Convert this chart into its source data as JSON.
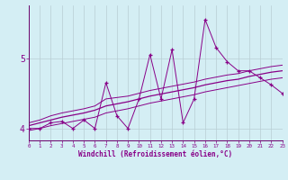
{
  "xlabel": "Windchill (Refroidissement éolien,°C)",
  "bg_color": "#d4eef4",
  "line_color": "#880088",
  "grid_color": "#b8cdd4",
  "spine_color": "#6a006a",
  "x_values": [
    0,
    1,
    2,
    3,
    4,
    5,
    6,
    7,
    8,
    9,
    10,
    11,
    12,
    13,
    14,
    15,
    16,
    17,
    18,
    19,
    20,
    21,
    22,
    23
  ],
  "y_data": [
    4.0,
    4.0,
    4.08,
    4.1,
    4.0,
    4.12,
    4.0,
    4.65,
    4.18,
    4.0,
    4.42,
    5.05,
    4.42,
    5.12,
    4.08,
    4.42,
    5.55,
    5.15,
    4.95,
    4.82,
    4.82,
    4.72,
    4.62,
    4.5
  ],
  "y_upper": [
    4.08,
    4.12,
    4.18,
    4.22,
    4.25,
    4.28,
    4.32,
    4.42,
    4.44,
    4.46,
    4.5,
    4.54,
    4.57,
    4.6,
    4.63,
    4.66,
    4.7,
    4.73,
    4.76,
    4.78,
    4.82,
    4.85,
    4.88,
    4.9
  ],
  "y_middle": [
    4.04,
    4.08,
    4.12,
    4.16,
    4.19,
    4.22,
    4.26,
    4.32,
    4.35,
    4.38,
    4.42,
    4.46,
    4.49,
    4.52,
    4.55,
    4.58,
    4.62,
    4.65,
    4.68,
    4.7,
    4.74,
    4.77,
    4.8,
    4.82
  ],
  "y_lower": [
    3.97,
    4.0,
    4.04,
    4.07,
    4.1,
    4.13,
    4.16,
    4.22,
    4.25,
    4.28,
    4.32,
    4.36,
    4.39,
    4.42,
    4.45,
    4.48,
    4.52,
    4.55,
    4.58,
    4.61,
    4.64,
    4.67,
    4.7,
    4.72
  ],
  "ylim": [
    3.83,
    5.75
  ],
  "yticks": [
    4,
    5
  ],
  "xlim": [
    0,
    23
  ]
}
